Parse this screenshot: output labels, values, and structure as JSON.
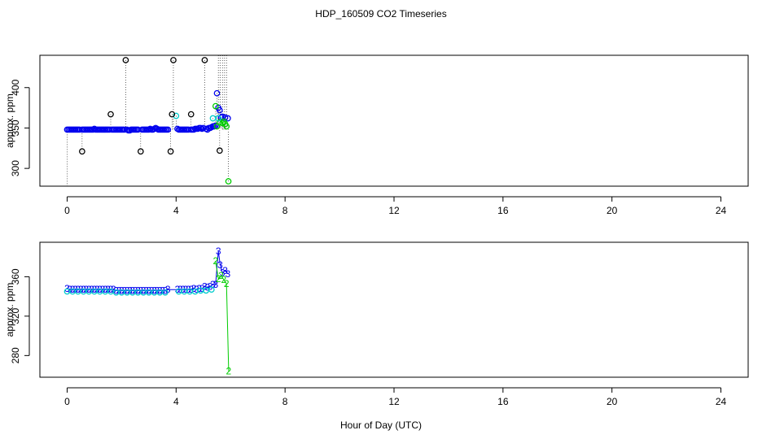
{
  "chart_data": [
    {
      "type": "scatter",
      "title": "HDP_160509  CO2 Timeseries",
      "xlabel": "",
      "ylabel": "approx. ppm",
      "xlim": [
        -1,
        25
      ],
      "ylim": [
        278,
        440
      ],
      "xticks": [
        0,
        4,
        8,
        12,
        16,
        20,
        24
      ],
      "yticks": [
        300,
        350,
        400
      ],
      "series": [
        {
          "color": "#0000ee",
          "marker": "circle",
          "x": [
            0.0,
            0.05,
            0.1,
            0.15,
            0.2,
            0.25,
            0.3,
            0.35,
            0.4,
            0.45,
            0.55,
            0.6,
            0.65,
            0.7,
            0.75,
            0.8,
            0.85,
            0.9,
            0.95,
            1.0,
            1.05,
            1.1,
            1.15,
            1.2,
            1.25,
            1.3,
            1.35,
            1.4,
            1.45,
            1.5,
            1.55,
            1.65,
            1.7,
            1.75,
            1.8,
            1.85,
            1.9,
            1.95,
            2.0,
            2.05,
            2.1,
            2.2,
            2.25,
            2.3,
            2.35,
            2.4,
            2.45,
            2.5,
            2.55,
            2.6,
            2.75,
            2.8,
            2.85,
            2.9,
            2.95,
            3.0,
            3.05,
            3.1,
            3.15,
            3.2,
            3.25,
            3.3,
            3.35,
            3.4,
            3.45,
            3.5,
            3.55,
            3.6,
            3.65,
            3.7,
            4.05,
            4.1,
            4.15,
            4.2,
            4.25,
            4.3,
            4.35,
            4.4,
            4.45,
            4.55,
            4.6,
            4.65,
            4.7,
            4.75,
            4.8,
            4.85,
            4.9,
            4.95,
            5.0,
            5.1,
            5.15,
            5.2,
            5.25,
            5.3,
            5.35,
            5.4,
            5.45,
            5.5,
            5.55,
            5.6,
            5.65,
            5.7,
            5.8,
            5.9
          ],
          "y": [
            348,
            348,
            348,
            348,
            348,
            348,
            348,
            348,
            348,
            348,
            348,
            348,
            348,
            348,
            348,
            348,
            348,
            348,
            348,
            349,
            348,
            348,
            348,
            348,
            348,
            348,
            348,
            348,
            348,
            348,
            348,
            348,
            348,
            348,
            348,
            348,
            348,
            348,
            348,
            348,
            348,
            348,
            347,
            347,
            348,
            348,
            348,
            348,
            348,
            348,
            348,
            348,
            348,
            348,
            348,
            348,
            349,
            348,
            348,
            349,
            350,
            349,
            348,
            348,
            348,
            348,
            348,
            348,
            348,
            348,
            349,
            348,
            348,
            348,
            348,
            348,
            348,
            348,
            348,
            348,
            348,
            348,
            349,
            349,
            349,
            350,
            350,
            349,
            350,
            349,
            348,
            350,
            350,
            351,
            352,
            352,
            353,
            393,
            375,
            372,
            363,
            364,
            363,
            362
          ]
        },
        {
          "color": "#00cc00",
          "marker": "circle",
          "x": [
            5.45,
            5.5,
            5.6,
            5.7,
            5.75,
            5.8,
            5.85,
            5.92
          ],
          "y": [
            377,
            352,
            357,
            356,
            358,
            355,
            352,
            284
          ]
        },
        {
          "color": "#00cccc",
          "marker": "circle",
          "x": [
            4.0,
            5.35,
            5.55
          ],
          "y": [
            365,
            362,
            362
          ]
        },
        {
          "color": "#000000",
          "marker": "circle",
          "x": [
            0.55,
            1.6,
            2.15,
            2.7,
            3.8,
            3.85,
            3.9,
            4.55,
            5.05,
            5.6
          ],
          "y": [
            321,
            367,
            434,
            321,
            321,
            367,
            434,
            367,
            434,
            322
          ]
        }
      ]
    },
    {
      "type": "line",
      "title": "",
      "xlabel": "Hour of Day (UTC)",
      "ylabel": "approx. ppm",
      "xlim": [
        -1,
        25
      ],
      "ylim": [
        258,
        395
      ],
      "xticks": [
        0,
        4,
        8,
        12,
        16,
        20,
        24
      ],
      "yticks": [
        280,
        320,
        360
      ],
      "series": [
        {
          "color": "#0000ee",
          "marker": "3",
          "x": [
            0.0,
            0.1,
            0.2,
            0.3,
            0.4,
            0.5,
            0.6,
            0.7,
            0.8,
            0.9,
            1.0,
            1.1,
            1.2,
            1.3,
            1.4,
            1.5,
            1.6,
            1.7,
            1.8,
            1.9,
            2.0,
            2.1,
            2.2,
            2.3,
            2.4,
            2.5,
            2.6,
            2.7,
            2.8,
            2.9,
            3.0,
            3.1,
            3.2,
            3.3,
            3.4,
            3.5,
            3.6,
            3.7,
            4.05,
            4.15,
            4.25,
            4.35,
            4.45,
            4.55,
            4.65,
            4.75,
            4.85,
            4.95,
            5.05,
            5.15,
            5.25,
            5.35,
            5.45,
            5.55,
            5.62,
            5.7,
            5.8,
            5.9
          ],
          "y": [
            348,
            347,
            347,
            347,
            347,
            347,
            347,
            347,
            347,
            347,
            347,
            347,
            347,
            347,
            347,
            347,
            347,
            347,
            346,
            346,
            346,
            346,
            346,
            346,
            346,
            346,
            346,
            346,
            346,
            346,
            346,
            346,
            346,
            346,
            346,
            346,
            346,
            347,
            347,
            347,
            347,
            347,
            347,
            347,
            348,
            347,
            348,
            348,
            350,
            349,
            350,
            352,
            352,
            386,
            372,
            364,
            366,
            363
          ]
        },
        {
          "color": "#00cc00",
          "marker": "2",
          "x": [
            5.45,
            5.55,
            5.65,
            5.75,
            5.85,
            5.93
          ],
          "y": [
            376,
            358,
            361,
            357,
            353,
            264
          ]
        },
        {
          "color": "#00cccc",
          "marker": "circle",
          "x": [
            0.0,
            0.2,
            0.4,
            0.6,
            0.8,
            1.0,
            1.2,
            1.4,
            1.6,
            1.8,
            2.0,
            2.2,
            2.4,
            2.6,
            2.8,
            3.0,
            3.2,
            3.4,
            3.6,
            4.1,
            4.3,
            4.5,
            4.7,
            4.9,
            5.1,
            5.3
          ],
          "y": [
            345,
            345,
            345,
            345,
            345,
            345,
            345,
            345,
            345,
            344,
            344,
            344,
            344,
            344,
            344,
            344,
            344,
            344,
            344,
            345,
            345,
            345,
            345,
            346,
            346,
            347
          ]
        }
      ]
    }
  ]
}
